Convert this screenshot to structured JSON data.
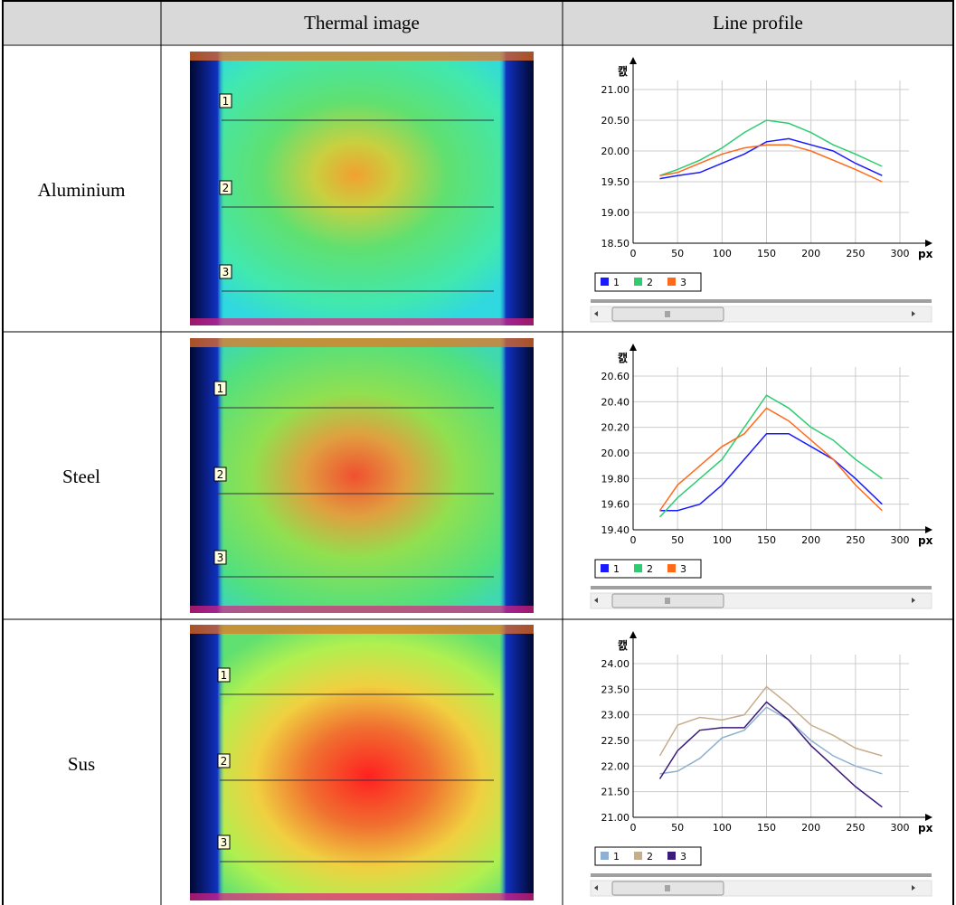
{
  "table": {
    "header": [
      "Thermal image",
      "Line profile"
    ],
    "rows": [
      {
        "material": "Aluminium",
        "markers": [
          "1",
          "2",
          "3"
        ],
        "line_profile": {
          "type": "line",
          "y_unit": "캜",
          "x_unit": "px",
          "x": [
            30,
            50,
            75,
            100,
            125,
            150,
            175,
            200,
            225,
            250,
            280
          ],
          "xlim": [
            0,
            300
          ],
          "xticks": [
            0,
            50,
            100,
            150,
            200,
            250,
            300
          ],
          "ylim": [
            18.5,
            21
          ],
          "yticks": [
            {
              "value": 18.5,
              "label": "18.50"
            },
            {
              "value": 19,
              "label": "19.00"
            },
            {
              "value": 19.5,
              "label": "19.50"
            },
            {
              "value": 20,
              "label": "20.00"
            },
            {
              "value": 20.5,
              "label": "20.50"
            },
            {
              "value": 21,
              "label": "21.00"
            }
          ],
          "series": [
            {
              "name": "1",
              "color": "#1a1aff",
              "values": [
                19.55,
                19.6,
                19.65,
                19.8,
                19.95,
                20.15,
                20.2,
                20.1,
                20.0,
                19.8,
                19.6
              ]
            },
            {
              "name": "2",
              "color": "#2ecc71",
              "values": [
                19.6,
                19.7,
                19.85,
                20.05,
                20.3,
                20.5,
                20.45,
                20.3,
                20.1,
                19.95,
                19.75
              ]
            },
            {
              "name": "3",
              "color": "#ff6a1a",
              "values": [
                19.6,
                19.65,
                19.8,
                19.95,
                20.05,
                20.1,
                20.1,
                20.0,
                19.85,
                19.7,
                19.5
              ]
            }
          ]
        }
      },
      {
        "material": "Steel",
        "markers": [
          "1",
          "2",
          "3"
        ],
        "line_profile": {
          "type": "line",
          "y_unit": "캜",
          "x_unit": "px",
          "x": [
            30,
            50,
            75,
            100,
            125,
            150,
            175,
            200,
            225,
            250,
            280
          ],
          "xlim": [
            0,
            300
          ],
          "xticks": [
            0,
            50,
            100,
            150,
            200,
            250,
            300
          ],
          "ylim": [
            19.4,
            20.6
          ],
          "yticks": [
            {
              "value": 19.4,
              "label": "19.40"
            },
            {
              "value": 19.6,
              "label": "19.60"
            },
            {
              "value": 19.8,
              "label": "19.80"
            },
            {
              "value": 20,
              "label": "20.00"
            },
            {
              "value": 20.2,
              "label": "20.20"
            },
            {
              "value": 20.4,
              "label": "20.40"
            },
            {
              "value": 20.6,
              "label": "20.60"
            }
          ],
          "series": [
            {
              "name": "1",
              "color": "#1a1aff",
              "values": [
                19.55,
                19.55,
                19.6,
                19.75,
                19.95,
                20.15,
                20.15,
                20.05,
                19.95,
                19.8,
                19.6
              ]
            },
            {
              "name": "2",
              "color": "#2ecc71",
              "values": [
                19.5,
                19.65,
                19.8,
                19.95,
                20.2,
                20.45,
                20.35,
                20.2,
                20.1,
                19.95,
                19.8
              ]
            },
            {
              "name": "3",
              "color": "#ff6a1a",
              "values": [
                19.55,
                19.75,
                19.9,
                20.05,
                20.15,
                20.35,
                20.25,
                20.1,
                19.95,
                19.75,
                19.55
              ]
            }
          ]
        }
      },
      {
        "material": "Sus",
        "markers": [
          "1",
          "2",
          "3"
        ],
        "line_profile": {
          "type": "line",
          "y_unit": "캜",
          "x_unit": "px",
          "x": [
            30,
            50,
            75,
            100,
            125,
            150,
            175,
            200,
            225,
            250,
            280
          ],
          "xlim": [
            0,
            300
          ],
          "xticks": [
            0,
            50,
            100,
            150,
            200,
            250,
            300
          ],
          "ylim": [
            21,
            24
          ],
          "yticks": [
            {
              "value": 21,
              "label": "21.00"
            },
            {
              "value": 21.5,
              "label": "21.50"
            },
            {
              "value": 22,
              "label": "22.00"
            },
            {
              "value": 22.5,
              "label": "22.50"
            },
            {
              "value": 23,
              "label": "23.00"
            },
            {
              "value": 23.5,
              "label": "23.50"
            },
            {
              "value": 24,
              "label": "24.00"
            }
          ],
          "series": [
            {
              "name": "1",
              "color": "#8fb0d0",
              "values": [
                21.85,
                21.9,
                22.15,
                22.55,
                22.7,
                23.15,
                22.9,
                22.5,
                22.2,
                22.0,
                21.85
              ]
            },
            {
              "name": "2",
              "color": "#c8ad8c",
              "values": [
                22.2,
                22.8,
                22.95,
                22.9,
                23.0,
                23.55,
                23.2,
                22.8,
                22.6,
                22.35,
                22.2
              ]
            },
            {
              "name": "3",
              "color": "#3a1a7a",
              "values": [
                21.75,
                22.3,
                22.7,
                22.75,
                22.75,
                23.25,
                22.9,
                22.4,
                22.0,
                21.6,
                21.2
              ]
            }
          ]
        }
      }
    ]
  }
}
